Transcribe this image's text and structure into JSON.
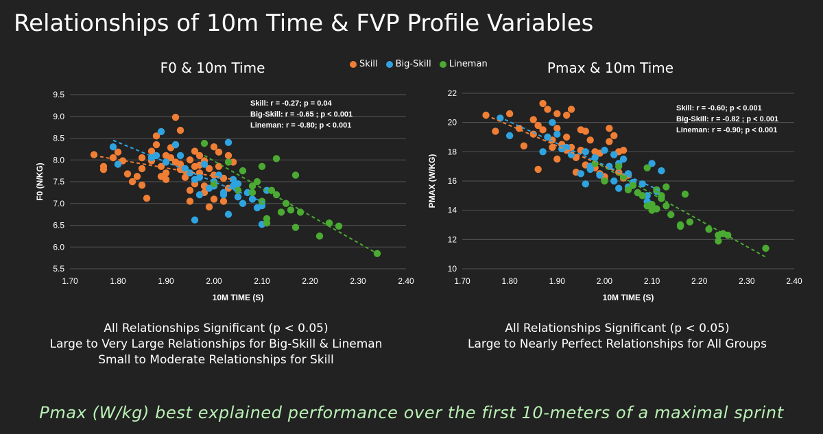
{
  "page_title": "Relationships of 10m Time & FVP Profile Variables",
  "legend": [
    {
      "label": "Skill",
      "color": "#f07e35"
    },
    {
      "label": "Big-Skill",
      "color": "#2fa3e0"
    },
    {
      "label": "Lineman",
      "color": "#4aaa32"
    }
  ],
  "chart_data": [
    {
      "type": "scatter",
      "title": "F0 & 10m Time",
      "xlabel": "10M TIME (S)",
      "ylabel": "F0 (N/KG)",
      "xlim": [
        1.7,
        2.4
      ],
      "ylim": [
        5.5,
        9.5
      ],
      "xticks": [
        "1.70",
        "1.80",
        "1.90",
        "2.00",
        "2.10",
        "2.20",
        "2.30",
        "2.40"
      ],
      "yticks": [
        "5.5",
        "6.0",
        "6.5",
        "7.0",
        "7.5",
        "8.0",
        "8.5",
        "9.0",
        "9.5"
      ],
      "grid": true,
      "stats": [
        {
          "group": "Skill:",
          "text": "r = -0.27; p = 0.04"
        },
        {
          "group": "Big-Skill:",
          "text": "r = -0.65 ; p < 0.001"
        },
        {
          "group": "Lineman:",
          "text": "r = -0.80; p < 0.001"
        }
      ],
      "series": [
        {
          "name": "Skill",
          "color": "#f07e35",
          "trend": [
            [
              1.75,
              8.1
            ],
            [
              2.04,
              7.55
            ]
          ],
          "points": [
            [
              1.75,
              8.12
            ],
            [
              1.77,
              7.85
            ],
            [
              1.77,
              7.78
            ],
            [
              1.79,
              8.05
            ],
            [
              1.8,
              8.18
            ],
            [
              1.81,
              7.98
            ],
            [
              1.82,
              7.68
            ],
            [
              1.83,
              7.5
            ],
            [
              1.84,
              7.62
            ],
            [
              1.85,
              7.42
            ],
            [
              1.85,
              8.05
            ],
            [
              1.85,
              7.8
            ],
            [
              1.86,
              7.12
            ],
            [
              1.87,
              7.98
            ],
            [
              1.87,
              8.2
            ],
            [
              1.88,
              8.35
            ],
            [
              1.88,
              8.55
            ],
            [
              1.89,
              7.85
            ],
            [
              1.9,
              8.1
            ],
            [
              1.9,
              7.55
            ],
            [
              1.9,
              7.7
            ],
            [
              1.91,
              8.28
            ],
            [
              1.91,
              8.05
            ],
            [
              1.92,
              7.95
            ],
            [
              1.92,
              8.98
            ],
            [
              1.92,
              8.35
            ],
            [
              1.93,
              8.68
            ],
            [
              1.93,
              7.9
            ],
            [
              1.94,
              7.75
            ],
            [
              1.94,
              7.6
            ],
            [
              1.95,
              7.3
            ],
            [
              1.95,
              7.05
            ],
            [
              1.95,
              8.0
            ],
            [
              1.96,
              7.85
            ],
            [
              1.96,
              8.2
            ],
            [
              1.96,
              7.45
            ],
            [
              1.97,
              7.7
            ],
            [
              1.97,
              8.1
            ],
            [
              1.98,
              7.4
            ],
            [
              1.98,
              7.98
            ],
            [
              1.98,
              7.25
            ],
            [
              1.99,
              7.8
            ],
            [
              1.99,
              6.92
            ],
            [
              2.0,
              7.1
            ],
            [
              2.0,
              8.3
            ],
            [
              2.0,
              7.65
            ],
            [
              2.01,
              8.18
            ],
            [
              2.01,
              7.85
            ],
            [
              2.02,
              7.58
            ],
            [
              2.03,
              7.35
            ],
            [
              2.03,
              8.1
            ],
            [
              2.04,
              7.95
            ],
            [
              1.89,
              7.62
            ],
            [
              1.93,
              7.78
            ],
            [
              1.97,
              7.88
            ],
            [
              2.02,
              7.05
            ]
          ]
        },
        {
          "name": "Big-Skill",
          "color": "#2fa3e0",
          "trend": [
            [
              1.79,
              8.45
            ],
            [
              2.11,
              7.0
            ]
          ],
          "points": [
            [
              1.79,
              8.3
            ],
            [
              1.8,
              7.9
            ],
            [
              1.87,
              8.05
            ],
            [
              1.88,
              8.1
            ],
            [
              1.89,
              8.65
            ],
            [
              1.9,
              7.95
            ],
            [
              1.92,
              8.35
            ],
            [
              1.93,
              8.1
            ],
            [
              1.94,
              7.8
            ],
            [
              1.95,
              7.7
            ],
            [
              1.96,
              6.62
            ],
            [
              1.96,
              7.55
            ],
            [
              1.97,
              7.6
            ],
            [
              1.98,
              7.9
            ],
            [
              1.99,
              7.35
            ],
            [
              2.0,
              7.5
            ],
            [
              2.01,
              7.65
            ],
            [
              2.02,
              7.25
            ],
            [
              2.02,
              7.2
            ],
            [
              2.03,
              8.4
            ],
            [
              2.03,
              6.75
            ],
            [
              2.04,
              7.55
            ],
            [
              2.04,
              7.4
            ],
            [
              2.05,
              7.15
            ],
            [
              2.06,
              7.0
            ],
            [
              2.07,
              7.25
            ],
            [
              2.08,
              7.1
            ],
            [
              2.09,
              6.9
            ],
            [
              2.1,
              6.52
            ],
            [
              2.1,
              6.95
            ],
            [
              2.11,
              7.3
            ],
            [
              1.97,
              7.2
            ],
            [
              2.0,
              7.4
            ],
            [
              2.05,
              7.45
            ]
          ]
        },
        {
          "name": "Lineman",
          "color": "#4aaa32",
          "trend": [
            [
              1.98,
              8.1
            ],
            [
              2.34,
              5.85
            ]
          ],
          "points": [
            [
              1.98,
              8.38
            ],
            [
              2.0,
              7.45
            ],
            [
              2.03,
              7.95
            ],
            [
              2.05,
              7.3
            ],
            [
              2.06,
              7.75
            ],
            [
              2.08,
              7.4
            ],
            [
              2.09,
              7.5
            ],
            [
              2.1,
              7.85
            ],
            [
              2.11,
              6.65
            ],
            [
              2.11,
              6.55
            ],
            [
              2.12,
              7.3
            ],
            [
              2.13,
              8.03
            ],
            [
              2.13,
              7.2
            ],
            [
              2.14,
              6.8
            ],
            [
              2.15,
              7.0
            ],
            [
              2.16,
              6.85
            ],
            [
              2.17,
              7.65
            ],
            [
              2.17,
              6.45
            ],
            [
              2.18,
              6.8
            ],
            [
              2.22,
              6.25
            ],
            [
              2.24,
              6.55
            ],
            [
              2.26,
              6.48
            ],
            [
              2.34,
              5.85
            ],
            [
              2.1,
              7.05
            ],
            [
              2.08,
              7.25
            ]
          ]
        }
      ]
    },
    {
      "type": "scatter",
      "title": "Pmax & 10m Time",
      "xlabel": "10M TIME (S)",
      "ylabel": "PMAX (W/KG)",
      "xlim": [
        1.7,
        2.4
      ],
      "ylim": [
        10,
        22
      ],
      "xticks": [
        "1.70",
        "1.80",
        "1.90",
        "2.00",
        "2.10",
        "2.20",
        "2.30",
        "2.40"
      ],
      "yticks": [
        "10",
        "12",
        "14",
        "16",
        "18",
        "20",
        "22"
      ],
      "grid": true,
      "stats": [
        {
          "group": "Skill:",
          "text": "r = -0.60; p < 0.001"
        },
        {
          "group": "Big-Skill:",
          "text": "r = -0.82 ; p < 0.001"
        },
        {
          "group": "Lineman:",
          "text": "r = -0.90; p < 0.001"
        }
      ],
      "series": [
        {
          "name": "Skill",
          "color": "#f07e35",
          "trend": [
            [
              1.75,
              20.5
            ],
            [
              2.05,
              16.3
            ]
          ],
          "points": [
            [
              1.75,
              20.5
            ],
            [
              1.77,
              19.4
            ],
            [
              1.8,
              20.6
            ],
            [
              1.82,
              19.6
            ],
            [
              1.83,
              18.4
            ],
            [
              1.85,
              19.2
            ],
            [
              1.85,
              20.2
            ],
            [
              1.86,
              19.8
            ],
            [
              1.86,
              16.8
            ],
            [
              1.87,
              19.5
            ],
            [
              1.87,
              21.3
            ],
            [
              1.88,
              20.9
            ],
            [
              1.88,
              19.0
            ],
            [
              1.89,
              18.8
            ],
            [
              1.9,
              20.6
            ],
            [
              1.9,
              19.6
            ],
            [
              1.9,
              17.5
            ],
            [
              1.91,
              18.5
            ],
            [
              1.92,
              20.5
            ],
            [
              1.92,
              19.0
            ],
            [
              1.93,
              20.9
            ],
            [
              1.93,
              18.3
            ],
            [
              1.94,
              17.6
            ],
            [
              1.94,
              16.6
            ],
            [
              1.95,
              19.5
            ],
            [
              1.95,
              18.1
            ],
            [
              1.96,
              19.4
            ],
            [
              1.96,
              17.1
            ],
            [
              1.97,
              18.8
            ],
            [
              1.98,
              18.0
            ],
            [
              1.98,
              16.9
            ],
            [
              1.99,
              17.9
            ],
            [
              1.99,
              16.5
            ],
            [
              2.0,
              16.1
            ],
            [
              2.0,
              16.3
            ],
            [
              2.01,
              18.7
            ],
            [
              2.01,
              19.6
            ],
            [
              2.02,
              19.1
            ],
            [
              2.02,
              17.8
            ],
            [
              2.03,
              18.0
            ],
            [
              2.03,
              16.6
            ],
            [
              2.04,
              16.2
            ],
            [
              2.04,
              18.1
            ],
            [
              2.05,
              16.4
            ],
            [
              1.89,
              18.3
            ],
            [
              1.92,
              18.1
            ]
          ]
        },
        {
          "name": "Big-Skill",
          "color": "#2fa3e0",
          "trend": [
            [
              1.79,
              20.2
            ],
            [
              2.12,
              15.3
            ]
          ],
          "points": [
            [
              1.78,
              20.3
            ],
            [
              1.8,
              19.1
            ],
            [
              1.87,
              18.0
            ],
            [
              1.88,
              19.0
            ],
            [
              1.89,
              20.0
            ],
            [
              1.9,
              19.2
            ],
            [
              1.91,
              18.2
            ],
            [
              1.92,
              18.3
            ],
            [
              1.93,
              17.8
            ],
            [
              1.95,
              16.5
            ],
            [
              1.96,
              15.8
            ],
            [
              1.96,
              18.0
            ],
            [
              1.97,
              17.0
            ],
            [
              1.98,
              17.6
            ],
            [
              1.99,
              16.4
            ],
            [
              2.0,
              18.1
            ],
            [
              2.01,
              17.0
            ],
            [
              2.02,
              17.8
            ],
            [
              2.02,
              16.0
            ],
            [
              2.03,
              17.2
            ],
            [
              2.04,
              17.5
            ],
            [
              2.05,
              16.5
            ],
            [
              2.05,
              15.6
            ],
            [
              2.06,
              15.9
            ],
            [
              2.07,
              15.2
            ],
            [
              2.08,
              15.8
            ],
            [
              2.09,
              14.6
            ],
            [
              2.09,
              15.0
            ],
            [
              2.1,
              17.2
            ],
            [
              2.11,
              15.3
            ],
            [
              2.12,
              16.7
            ],
            [
              1.97,
              16.8
            ],
            [
              2.03,
              15.5
            ]
          ]
        },
        {
          "name": "Lineman",
          "color": "#4aaa32",
          "trend": [
            [
              1.98,
              17.3
            ],
            [
              2.34,
              10.8
            ]
          ],
          "points": [
            [
              1.98,
              17.2
            ],
            [
              2.0,
              16.0
            ],
            [
              2.03,
              17.0
            ],
            [
              2.04,
              16.3
            ],
            [
              2.05,
              15.4
            ],
            [
              2.06,
              15.7
            ],
            [
              2.07,
              15.2
            ],
            [
              2.08,
              15.0
            ],
            [
              2.09,
              16.9
            ],
            [
              2.09,
              14.3
            ],
            [
              2.1,
              14.4
            ],
            [
              2.1,
              14.0
            ],
            [
              2.11,
              15.4
            ],
            [
              2.12,
              14.8
            ],
            [
              2.12,
              15.0
            ],
            [
              2.13,
              14.3
            ],
            [
              2.13,
              15.6
            ],
            [
              2.14,
              13.7
            ],
            [
              2.16,
              12.9
            ],
            [
              2.16,
              13.0
            ],
            [
              2.17,
              15.1
            ],
            [
              2.18,
              13.2
            ],
            [
              2.22,
              12.7
            ],
            [
              2.24,
              12.3
            ],
            [
              2.24,
              11.9
            ],
            [
              2.25,
              12.4
            ],
            [
              2.26,
              12.3
            ],
            [
              2.34,
              11.4
            ],
            [
              2.11,
              14.1
            ]
          ]
        }
      ]
    }
  ],
  "captions": {
    "left": [
      "All Relationships Significant (p < 0.05)",
      "Large to Very Large Relationships for Big-Skill & Lineman",
      "Small to Moderate Relationships for Skill"
    ],
    "right": [
      "All Relationships Significant (p < 0.05)",
      "Large to Nearly Perfect Relationships for All Groups"
    ]
  },
  "footer": "Pmax (W/kg) best explained performance over the first 10-meters of a maximal sprint"
}
